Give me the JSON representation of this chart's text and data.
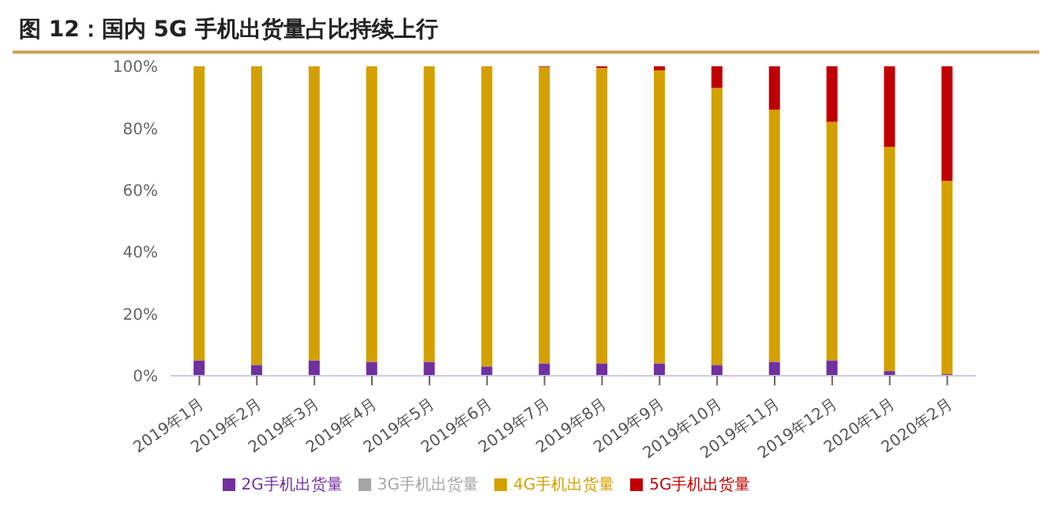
{
  "chart_data": {
    "type": "bar",
    "title": "图 12：国内 5G 手机出货量占比持续上行",
    "categories": [
      "2019年1月",
      "2019年2月",
      "2019年3月",
      "2019年4月",
      "2019年5月",
      "2019年6月",
      "2019年7月",
      "2019年8月",
      "2019年9月",
      "2019年10月",
      "2019年11月",
      "2019年12月",
      "2020年1月",
      "2020年2月"
    ],
    "series": [
      {
        "name": "2G手机出货量",
        "color": "#7030a0",
        "values": [
          5,
          3.5,
          5,
          4.5,
          4.5,
          3,
          4,
          4,
          4,
          3.5,
          4.5,
          5,
          1.5,
          0.5
        ]
      },
      {
        "name": "3G手机出货量",
        "color": "#a5a5a5",
        "values": [
          0,
          0,
          0,
          0,
          0,
          0,
          0,
          0,
          0,
          0,
          0,
          0,
          0,
          0
        ]
      },
      {
        "name": "4G手机出货量",
        "color": "#d4a000",
        "values": [
          95,
          96.5,
          95,
          95.5,
          95.5,
          97,
          95.8,
          95.5,
          94.7,
          89.5,
          81.5,
          77,
          72.5,
          62.5
        ]
      },
      {
        "name": "5G手机出货量",
        "color": "#c00000",
        "values": [
          0,
          0,
          0,
          0,
          0,
          0,
          0.2,
          0.5,
          1.3,
          7,
          14,
          18,
          26,
          37
        ]
      }
    ],
    "stacked": true,
    "ylim": [
      0,
      100
    ],
    "yticks": [
      {
        "value": 0,
        "label": "0%"
      },
      {
        "value": 20,
        "label": "20%"
      },
      {
        "value": 40,
        "label": "40%"
      },
      {
        "value": 60,
        "label": "60%"
      },
      {
        "value": 80,
        "label": "80%"
      },
      {
        "value": 100,
        "label": "100%"
      }
    ],
    "grid": false,
    "legend": "bottom"
  }
}
